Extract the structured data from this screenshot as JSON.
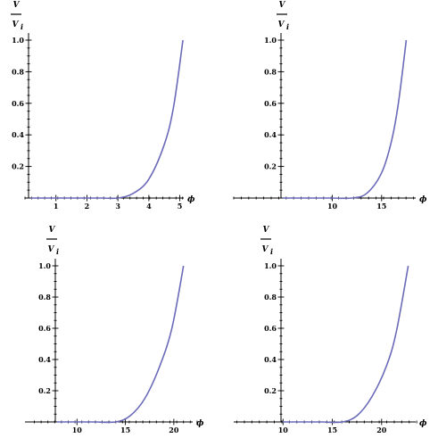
{
  "colors": {
    "curve": "#6a6ab8",
    "axes": "#000000"
  },
  "chart_data": [
    {
      "type": "line",
      "xlabel": "ϕ",
      "ylabel_numerator": "V",
      "ylabel_denominator": "V",
      "ylabel_denominator_subscript": "i",
      "xlim": [
        0,
        5.3
      ],
      "ylim": [
        0,
        1.0
      ],
      "x_ticks": [
        1,
        2,
        3,
        4,
        5
      ],
      "x_tick_labels": [
        "1",
        "2",
        "3",
        "4",
        "5"
      ],
      "y_ticks": [
        0.2,
        0.4,
        0.6,
        0.8,
        1.0
      ],
      "y_tick_labels": [
        "0.2",
        "0.4",
        "0.6",
        "0.8",
        "1.0"
      ],
      "series": [
        {
          "x": [
            2.5,
            3.0,
            3.5,
            4.0,
            4.5,
            4.8,
            5.1
          ],
          "y": [
            0.0,
            0.0,
            0.03,
            0.12,
            0.34,
            0.58,
            1.0
          ]
        }
      ]
    },
    {
      "type": "line",
      "xlabel": "ϕ",
      "ylabel_numerator": "V",
      "ylabel_denominator": "V",
      "ylabel_denominator_subscript": "i",
      "xlim": [
        0,
        19
      ],
      "ylim": [
        0,
        1.0
      ],
      "x_ticks": [
        10,
        15
      ],
      "x_tick_labels": [
        "10",
        "15"
      ],
      "y_ticks": [
        0.2,
        0.4,
        0.6,
        0.8,
        1.0
      ],
      "y_tick_labels": [
        "0.2",
        "0.4",
        "0.6",
        "0.8",
        "1.0"
      ],
      "series": [
        {
          "x": [
            10.0,
            12.0,
            13.5,
            15.0,
            16.0,
            16.7,
            17.5
          ],
          "y": [
            0.0,
            0.0,
            0.03,
            0.16,
            0.36,
            0.6,
            1.0
          ]
        }
      ]
    },
    {
      "type": "line",
      "xlabel": "ϕ",
      "ylabel_numerator": "V",
      "ylabel_denominator": "V",
      "ylabel_denominator_subscript": "i",
      "xlim": [
        5,
        22.5
      ],
      "ylim": [
        0,
        1.0
      ],
      "x_ticks": [
        10,
        15,
        20
      ],
      "x_tick_labels": [
        "10",
        "15",
        "20"
      ],
      "y_ticks": [
        0.2,
        0.4,
        0.6,
        0.8,
        1.0
      ],
      "y_tick_labels": [
        "0.2",
        "0.4",
        "0.6",
        "0.8",
        "1.0"
      ],
      "series": [
        {
          "x": [
            12.0,
            14.0,
            15.5,
            17.0,
            18.5,
            19.8,
            21.0
          ],
          "y": [
            0.0,
            0.0,
            0.04,
            0.15,
            0.35,
            0.6,
            1.0
          ]
        }
      ]
    },
    {
      "type": "line",
      "xlabel": "ϕ",
      "ylabel_numerator": "V",
      "ylabel_denominator": "V",
      "ylabel_denominator_subscript": "i",
      "xlim": [
        5,
        24
      ],
      "ylim": [
        0,
        1.0
      ],
      "x_ticks": [
        10,
        15,
        20
      ],
      "x_tick_labels": [
        "10",
        "15",
        "20"
      ],
      "y_ticks": [
        0.2,
        0.4,
        0.6,
        0.8,
        1.0
      ],
      "y_tick_labels": [
        "0.2",
        "0.4",
        "0.6",
        "0.8",
        "1.0"
      ],
      "series": [
        {
          "x": [
            14.0,
            16.0,
            17.5,
            19.0,
            20.5,
            21.5,
            22.7
          ],
          "y": [
            0.0,
            0.0,
            0.04,
            0.16,
            0.36,
            0.58,
            1.0
          ]
        }
      ]
    }
  ]
}
